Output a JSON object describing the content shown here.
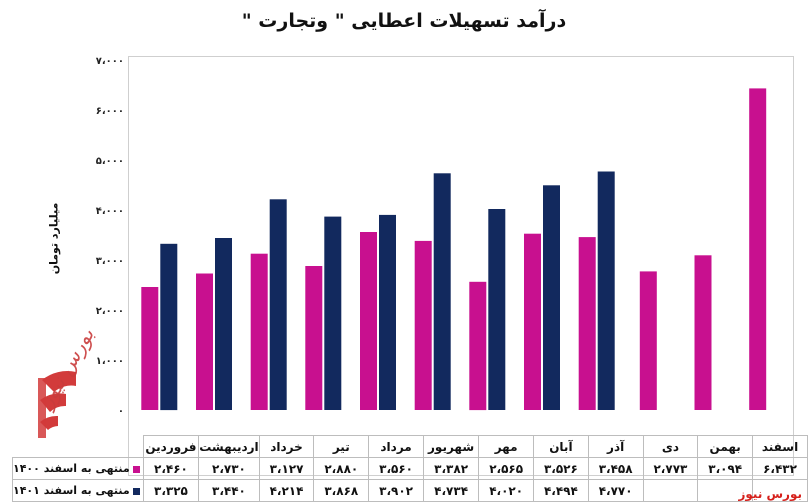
{
  "chart_data": {
    "type": "bar",
    "title": "درآمد تسهیلات اعطایی \" وتجارت \"",
    "ylabel": "میلیارد تومان",
    "ylim": [
      0,
      7000
    ],
    "yticks": [
      "۰",
      "۱،۰۰۰",
      "۲،۰۰۰",
      "۳،۰۰۰",
      "۴،۰۰۰",
      "۵،۰۰۰",
      "۶،۰۰۰",
      "۷،۰۰۰"
    ],
    "ytick_values": [
      0,
      1000,
      2000,
      3000,
      4000,
      5000,
      6000,
      7000
    ],
    "grid": false,
    "legend": "table-left",
    "categories": [
      "فروردین",
      "اردیبهشت",
      "خرداد",
      "تیر",
      "مرداد",
      "شهریور",
      "مهر",
      "آبان",
      "آذر",
      "دی",
      "بهمن",
      "اسفند"
    ],
    "series": [
      {
        "name": "منتهی به اسفند ۱۴۰۰",
        "color": "#c8108f",
        "values": [
          2460,
          2730,
          3127,
          2880,
          3560,
          3382,
          2565,
          3526,
          3458,
          2773,
          3094,
          6432
        ],
        "labels": [
          "۲،۴۶۰",
          "۲،۷۳۰",
          "۳،۱۲۷",
          "۲،۸۸۰",
          "۳،۵۶۰",
          "۳،۳۸۲",
          "۲،۵۶۵",
          "۳،۵۲۶",
          "۳،۴۵۸",
          "۲،۷۷۳",
          "۳،۰۹۴",
          "۶،۴۳۲"
        ]
      },
      {
        "name": "منتهی به اسفند ۱۴۰۱",
        "color": "#12295e",
        "values": [
          3325,
          3440,
          4214,
          3868,
          3902,
          4734,
          4020,
          4494,
          4770,
          null,
          null,
          null
        ],
        "labels": [
          "۳،۳۲۵",
          "۳،۴۴۰",
          "۴،۲۱۴",
          "۳،۸۶۸",
          "۳،۹۰۲",
          "۴،۷۳۴",
          "۴،۰۲۰",
          "۴،۴۹۴",
          "۴،۷۷۰",
          "",
          "",
          ""
        ]
      }
    ]
  },
  "logo_text": "بورس نیوز",
  "source_label": "بورس نیوز"
}
